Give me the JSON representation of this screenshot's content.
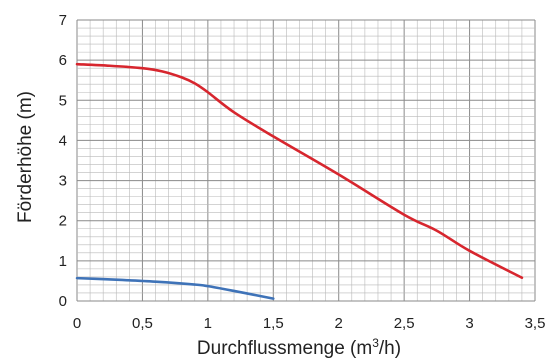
{
  "chart_data": {
    "type": "line",
    "xlabel": "Durchflussmenge (m",
    "xlabel_sup": "3",
    "xlabel_tail": "/h)",
    "ylabel": "Förderhöhe (m)",
    "xlim": [
      0,
      3.5
    ],
    "ylim": [
      0,
      7
    ],
    "x_ticks": [
      0,
      0.5,
      1,
      1.5,
      2,
      2.5,
      3,
      3.5
    ],
    "x_tick_labels": [
      "0",
      "0,5",
      "1",
      "1,5",
      "2",
      "2,5",
      "3",
      "3,5"
    ],
    "y_ticks": [
      0,
      1,
      2,
      3,
      4,
      5,
      6,
      7
    ],
    "y_tick_labels": [
      "0",
      "1",
      "2",
      "3",
      "4",
      "5",
      "6",
      "7"
    ],
    "grid": true,
    "series": [
      {
        "color": "#d7262e",
        "x": [
          0,
          0.25,
          0.5,
          0.65,
          0.8,
          0.9,
          1.0,
          1.2,
          1.5,
          2.0,
          2.5,
          2.75,
          3.0,
          3.4
        ],
        "y": [
          5.9,
          5.86,
          5.8,
          5.72,
          5.57,
          5.42,
          5.2,
          4.7,
          4.1,
          3.15,
          2.15,
          1.75,
          1.25,
          0.58
        ]
      },
      {
        "color": "#3f73b8",
        "x": [
          0,
          0.3,
          0.6,
          0.9,
          1.0,
          1.2,
          1.5
        ],
        "y": [
          0.57,
          0.53,
          0.48,
          0.41,
          0.37,
          0.25,
          0.06
        ]
      }
    ]
  }
}
